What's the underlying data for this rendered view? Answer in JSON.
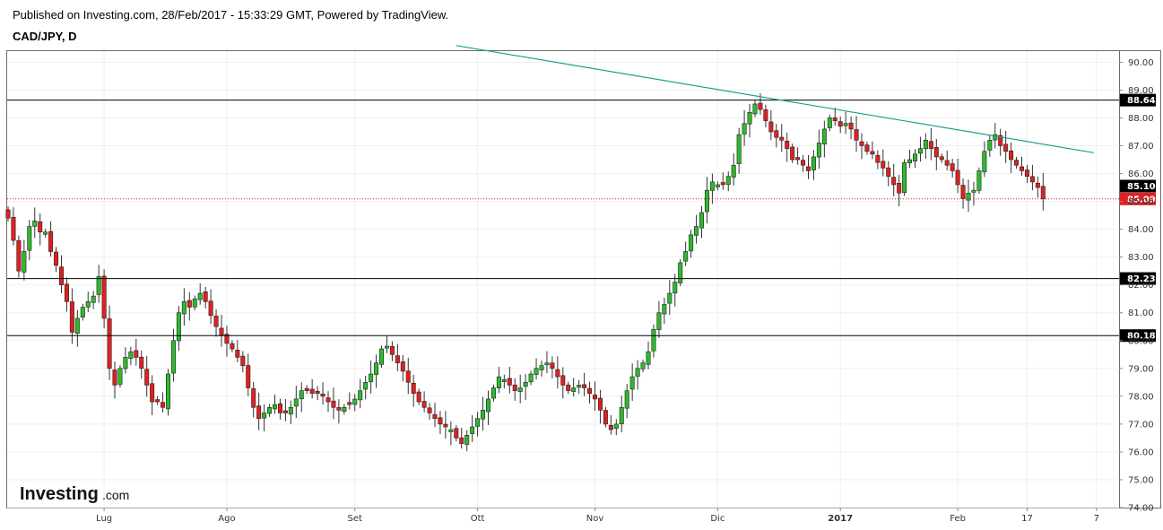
{
  "header": {
    "published": "Published on Investing.com, 28/Feb/2017 - 15:33:29 GMT, Powered by TradingView.",
    "symbol": "CAD/JPY, D"
  },
  "logo": {
    "brand": "Investing",
    "suffix": ".com"
  },
  "colors": {
    "up": "#2db92d",
    "down": "#e02020",
    "trendline": "#20a090",
    "level": "#000000",
    "current": "#e02020",
    "grid": "#efefef"
  },
  "chart_data": {
    "type": "candlestick",
    "ylim": [
      74.0,
      90.4
    ],
    "y_ticks": [
      "90.00",
      "89.00",
      "88.00",
      "87.00",
      "86.00",
      "85.00",
      "84.00",
      "83.00",
      "82.00",
      "81.00",
      "80.00",
      "79.00",
      "78.00",
      "77.00",
      "76.00",
      "75.00",
      "74.00"
    ],
    "x_ticks": [
      {
        "label": "Lug",
        "bold": false
      },
      {
        "label": "Ago",
        "bold": false
      },
      {
        "label": "Set",
        "bold": false
      },
      {
        "label": "Ott",
        "bold": false
      },
      {
        "label": "Nov",
        "bold": false
      },
      {
        "label": "Dic",
        "bold": false
      },
      {
        "label": "2017",
        "bold": true
      },
      {
        "label": "Feb",
        "bold": false
      },
      {
        "label": "17",
        "bold": false
      },
      {
        "label": "7",
        "bold": false
      }
    ],
    "x_tick_index": [
      18,
      41,
      65,
      88,
      110,
      133,
      156,
      178,
      191,
      204
    ],
    "levels": [
      {
        "label": "88.64",
        "value": 88.64
      },
      {
        "label": "82.23",
        "value": 82.23
      },
      {
        "label": "80.18",
        "value": 80.18
      }
    ],
    "current": {
      "label": "85.09",
      "value": 85.09
    },
    "last_close_label": {
      "label": "85.10",
      "value": 85.1
    },
    "trendline": {
      "start_index": 84,
      "start_value": 90.6,
      "end_index": 203.5,
      "end_value": 86.75
    },
    "closes": [
      84.4,
      83.6,
      82.5,
      83.2,
      84.1,
      84.3,
      83.9,
      83.9,
      83.2,
      82.7,
      82.0,
      81.4,
      80.3,
      80.8,
      81.2,
      81.4,
      81.6,
      82.3,
      80.8,
      79.0,
      78.4,
      79.0,
      79.4,
      79.6,
      79.4,
      79.0,
      78.4,
      77.8,
      77.8,
      77.6,
      78.8,
      80.0,
      81.0,
      81.4,
      81.2,
      81.5,
      81.7,
      81.4,
      80.9,
      80.5,
      80.2,
      79.9,
      79.7,
      79.4,
      79.1,
      78.3,
      77.6,
      77.2,
      77.4,
      77.6,
      77.7,
      77.4,
      77.4,
      77.6,
      77.9,
      78.2,
      78.2,
      78.1,
      78.1,
      78.0,
      77.8,
      77.6,
      77.5,
      77.6,
      77.7,
      77.9,
      78.2,
      78.5,
      78.8,
      79.2,
      79.7,
      79.8,
      79.5,
      79.2,
      78.9,
      78.5,
      78.1,
      77.8,
      77.6,
      77.4,
      77.2,
      77.0,
      76.9,
      76.8,
      76.5,
      76.3,
      76.6,
      76.9,
      77.2,
      77.5,
      77.9,
      78.3,
      78.7,
      78.6,
      78.4,
      78.2,
      78.3,
      78.5,
      78.8,
      79.0,
      79.1,
      79.2,
      79.0,
      78.7,
      78.4,
      78.2,
      78.3,
      78.4,
      78.3,
      78.1,
      77.9,
      77.5,
      77.0,
      76.8,
      77.0,
      77.6,
      78.2,
      78.7,
      79.0,
      79.2,
      79.6,
      80.4,
      81.0,
      81.3,
      81.7,
      82.1,
      82.8,
      83.2,
      83.8,
      84.1,
      84.6,
      85.4,
      85.7,
      85.6,
      85.6,
      85.9,
      86.3,
      87.4,
      87.8,
      88.2,
      88.5,
      88.3,
      87.9,
      87.5,
      87.3,
      87.2,
      86.9,
      86.5,
      86.5,
      86.3,
      86.1,
      86.6,
      87.1,
      87.6,
      88.0,
      87.9,
      87.7,
      87.8,
      87.6,
      87.2,
      87.0,
      86.8,
      86.7,
      86.4,
      86.2,
      85.9,
      85.6,
      85.3,
      86.4,
      86.5,
      86.7,
      86.9,
      87.2,
      86.9,
      86.6,
      86.5,
      86.3,
      86.1,
      85.6,
      85.1,
      85.3,
      85.4,
      86.1,
      86.8,
      87.2,
      87.4,
      87.0,
      86.8,
      86.5,
      86.3,
      86.1,
      85.9,
      85.7,
      85.5,
      85.09
    ]
  }
}
